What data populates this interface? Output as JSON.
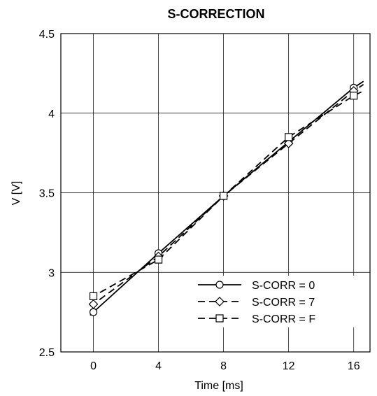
{
  "chart_data": {
    "type": "line",
    "title": "S-CORRECTION",
    "xlabel": "Time [ms]",
    "ylabel": "V [V]",
    "xlim": [
      -2,
      17
    ],
    "ylim": [
      2.5,
      4.5
    ],
    "grid": true,
    "legend_position": "lower-right",
    "x_ticks": [
      0,
      4,
      8,
      12,
      16
    ],
    "y_ticks": [
      2.5,
      3,
      3.5,
      4,
      4.5
    ],
    "x_tick_labels": [
      "0",
      "4",
      "8",
      "12",
      "16"
    ],
    "y_tick_labels": [
      "2.5",
      "3",
      "3.5",
      "4",
      "4.5"
    ],
    "x_range": [
      -0.2,
      16.6
    ],
    "series": [
      {
        "name": "S-CORR = 0",
        "marker": "circle",
        "dash": "solid",
        "x": [
          0,
          4,
          8,
          12,
          16
        ],
        "y": [
          2.75,
          3.12,
          3.48,
          3.82,
          4.16
        ],
        "line_ends": [
          2.73,
          4.2
        ]
      },
      {
        "name": "S-CORR = 7",
        "marker": "diamond",
        "dash": "dashed",
        "x": [
          0,
          4,
          8,
          12,
          16
        ],
        "y": [
          2.8,
          3.1,
          3.48,
          3.81,
          4.14
        ],
        "line_ends": [
          2.79,
          4.18
        ]
      },
      {
        "name": "S-CORR = F",
        "marker": "square",
        "dash": "dashed",
        "x": [
          0,
          4,
          8,
          12,
          16
        ],
        "y": [
          2.85,
          3.08,
          3.48,
          3.85,
          4.11
        ],
        "line_ends": [
          2.84,
          4.14
        ]
      }
    ]
  }
}
